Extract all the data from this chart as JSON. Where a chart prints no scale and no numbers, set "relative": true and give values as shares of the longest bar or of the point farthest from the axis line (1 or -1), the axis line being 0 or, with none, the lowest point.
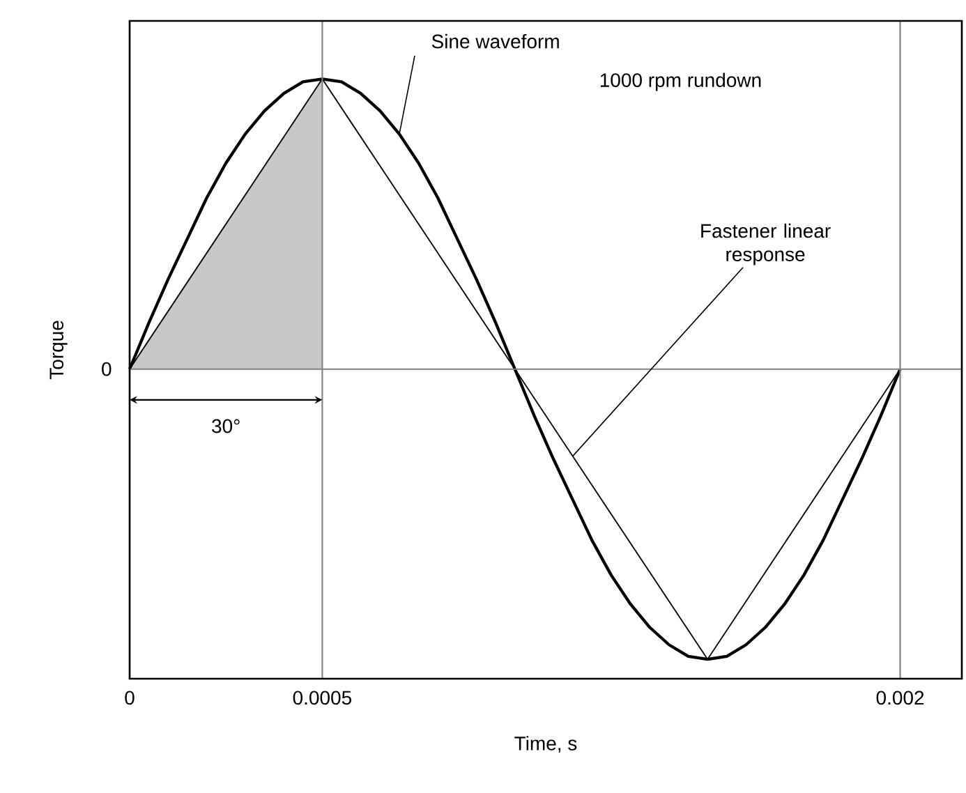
{
  "chart_data": {
    "type": "line",
    "relative": true,
    "xlabel": "Time, s",
    "ylabel": "Torque",
    "xlim": [
      0,
      0.00216
    ],
    "xticks": [
      0,
      0.0005,
      0.002
    ],
    "grid": false,
    "series": [
      {
        "type": "area",
        "color": "#c8c8c8",
        "x": [
          0,
          0.0005
        ],
        "values": [
          0,
          1
        ]
      },
      {
        "color": "#000000",
        "x": [
          0,
          5e-05,
          0.0001,
          0.00015,
          0.0002,
          0.00025,
          0.0003,
          0.00035,
          0.0004,
          0.00045,
          0.0005,
          0.00055,
          0.0006,
          0.00065,
          0.0007,
          0.00075,
          0.0008,
          0.00085,
          0.0009,
          0.00095,
          0.001,
          0.00105,
          0.0011,
          0.00115,
          0.0012,
          0.00125,
          0.0013,
          0.00135,
          0.0014,
          0.00145,
          0.0015,
          0.00155,
          0.0016,
          0.00165,
          0.0017,
          0.00175,
          0.0018,
          0.00185,
          0.0019,
          0.00195,
          0.002
        ],
        "values": [
          0,
          0.16,
          0.31,
          0.45,
          0.59,
          0.71,
          0.81,
          0.89,
          0.95,
          0.99,
          1,
          0.99,
          0.95,
          0.89,
          0.81,
          0.71,
          0.59,
          0.45,
          0.31,
          0.16,
          0,
          -0.16,
          -0.31,
          -0.45,
          -0.59,
          -0.71,
          -0.81,
          -0.89,
          -0.95,
          -0.99,
          -1,
          -0.99,
          -0.95,
          -0.89,
          -0.81,
          -0.71,
          -0.59,
          -0.45,
          -0.31,
          -0.16,
          0
        ]
      },
      {
        "color": "#000000",
        "x": [
          0,
          0.0005,
          0.0015,
          0.002
        ],
        "values": [
          0,
          1,
          -1,
          0
        ]
      }
    ],
    "ref_lines": [
      {
        "axis": "y",
        "value": 0,
        "color": "#808080"
      },
      {
        "axis": "x",
        "value": 0.0005,
        "color": "#808080"
      },
      {
        "axis": "x",
        "value": 0.002,
        "color": "#808080"
      }
    ],
    "annotations": [
      "0",
      {
        "text": "Sine waveform",
        "x": 0.0007,
        "y": 0.81
      },
      "1000 rpm rundown",
      {
        "text": "Fastener linear response",
        "x": 0.00115,
        "y": -0.3
      },
      "30°"
    ]
  }
}
